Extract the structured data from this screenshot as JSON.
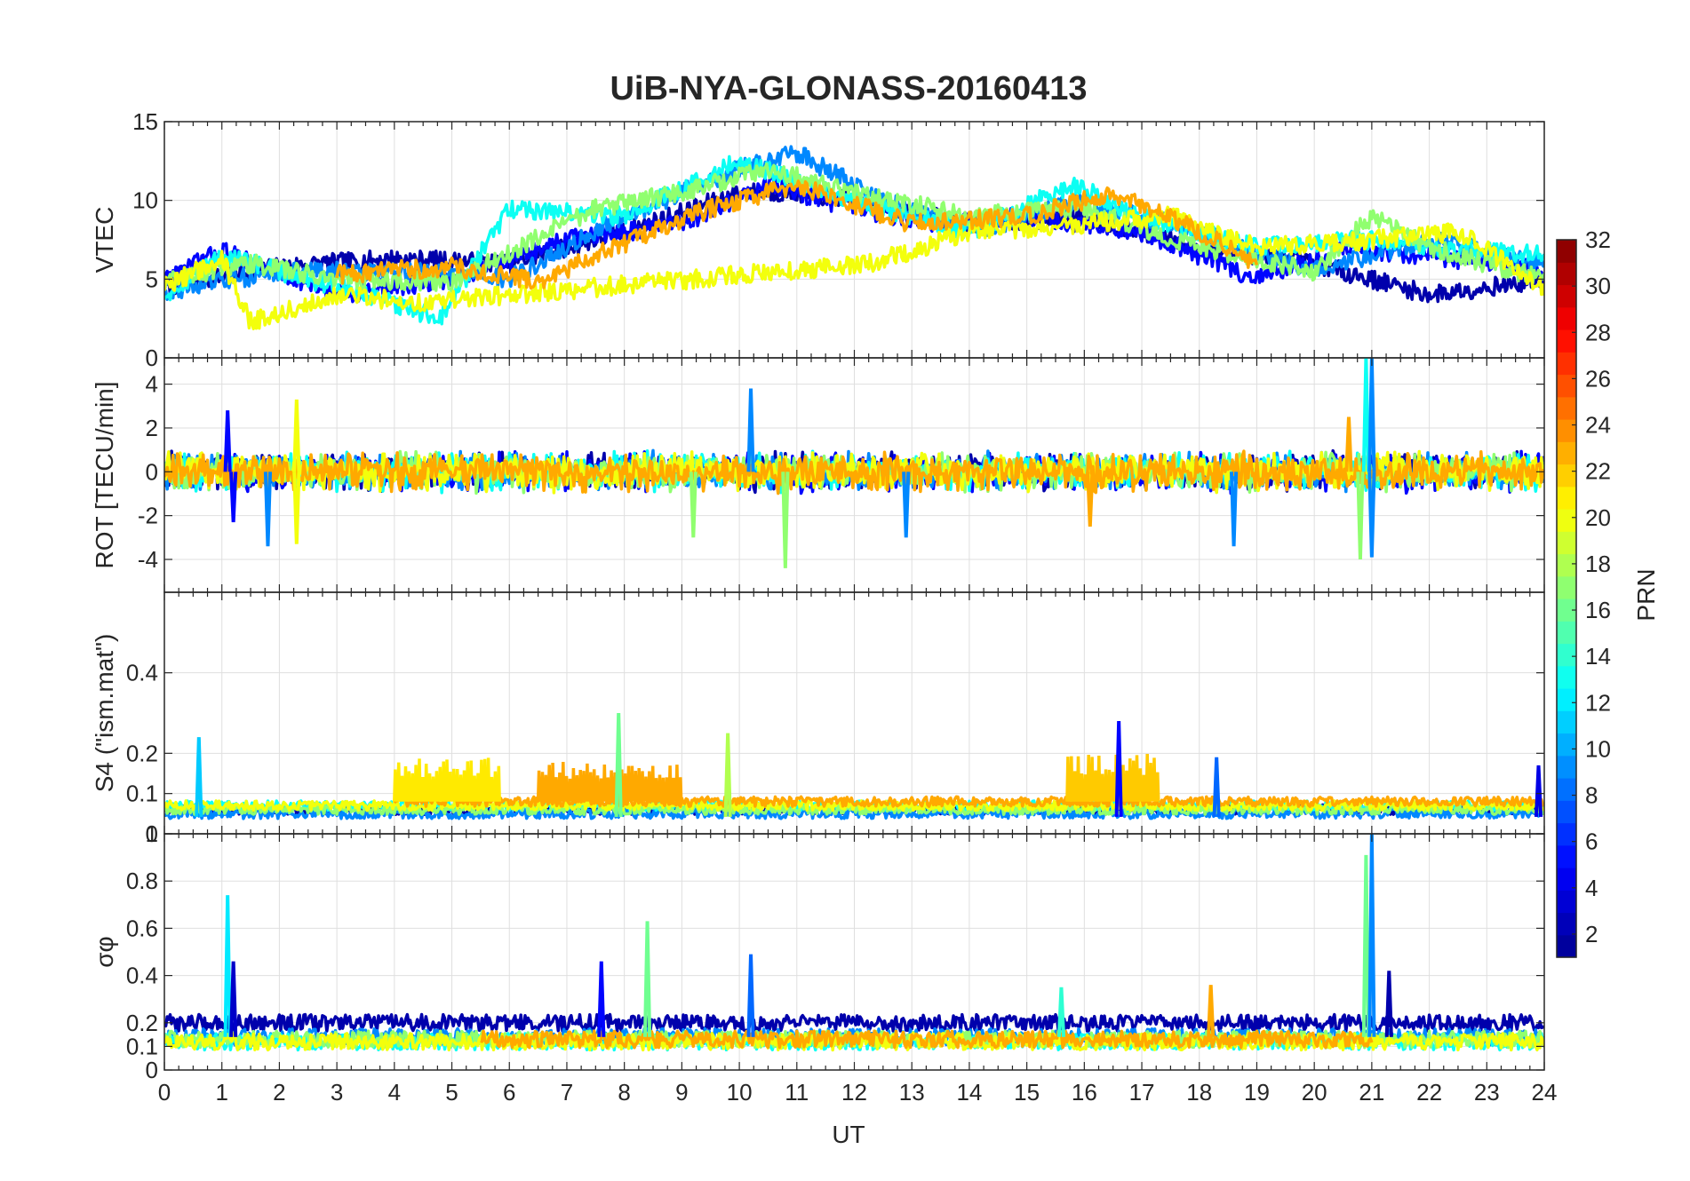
{
  "figure": {
    "title": "UiB-NYA-GLONASS-20160413",
    "x_label": "UT",
    "colorbar_label": "PRN"
  },
  "colors": {
    "axis": "#262626",
    "grid": "#dfdfdf",
    "jet_anchors": [
      "#00008f",
      "#0000ff",
      "#00ffff",
      "#ffff00",
      "#ff0000",
      "#800000"
    ]
  },
  "chart_data": [
    {
      "type": "line",
      "panel": "VTEC",
      "ylabel": "VTEC",
      "x_range": [
        0,
        24
      ],
      "ylim": [
        0,
        15
      ],
      "yticks": [
        0,
        5,
        10,
        15
      ],
      "grid": true,
      "series_baseline": [
        {
          "prn": 2,
          "x": [
            0,
            2,
            4,
            6,
            8,
            10,
            11,
            12,
            14,
            16,
            18,
            20,
            21,
            22,
            23,
            24
          ],
          "y": [
            4.5,
            5.8,
            6.3,
            6,
            8,
            10.5,
            10.5,
            10,
            8.5,
            9,
            7,
            6,
            5,
            4,
            4.5,
            5
          ]
        },
        {
          "prn": 5,
          "x": [
            0,
            1,
            3,
            5,
            7,
            9,
            10.5,
            12,
            13.5,
            15,
            17,
            19,
            20.5,
            22,
            24
          ],
          "y": [
            5,
            6.8,
            4,
            5,
            7.5,
            8.5,
            11,
            9.5,
            8.5,
            9,
            8,
            5,
            7,
            6.5,
            5.5
          ]
        },
        {
          "prn": 9,
          "x": [
            0,
            2,
            4,
            6,
            8,
            10,
            11,
            12.5,
            14,
            16,
            18,
            20,
            22,
            24
          ],
          "y": [
            4.2,
            5.5,
            5.5,
            5,
            9,
            12,
            13,
            10,
            8,
            10,
            8,
            5.5,
            7.5,
            6
          ]
        },
        {
          "prn": 13,
          "x": [
            0,
            1,
            3,
            4.8,
            6,
            8,
            10,
            12,
            14,
            15.8,
            17,
            19,
            20.8,
            22,
            24
          ],
          "y": [
            4,
            6.5,
            4.5,
            2.5,
            9.5,
            9,
            12.5,
            10,
            8,
            11,
            9,
            7,
            7.5,
            7,
            6.5
          ]
        },
        {
          "prn": 17,
          "x": [
            0,
            1.5,
            3,
            5,
            7.5,
            9,
            10.5,
            12,
            14,
            16,
            18,
            20,
            21,
            22,
            24
          ],
          "y": [
            5,
            6,
            5,
            4.8,
            9.5,
            10.5,
            12,
            10.5,
            9,
            9.5,
            7,
            5.5,
            9,
            7,
            5
          ]
        },
        {
          "prn": 20,
          "x": [
            0,
            1,
            1.5,
            3,
            4.5,
            12.3,
            14,
            16,
            17.5,
            19,
            21,
            22.5,
            24
          ],
          "y": [
            4.5,
            6.3,
            2.3,
            4,
            3.5,
            6,
            8,
            8.5,
            9,
            7,
            7.5,
            8,
            4.5
          ]
        },
        {
          "prn": 23,
          "x": [
            3,
            5,
            6.5,
            7.5,
            9.5,
            11,
            13,
            15,
            16.5,
            18,
            19
          ],
          "y": [
            5.3,
            5.8,
            4.8,
            6.5,
            9.5,
            11,
            8.5,
            9,
            10.5,
            8,
            6
          ]
        }
      ]
    },
    {
      "type": "line",
      "panel": "ROT",
      "ylabel": "ROT [TECU/min]",
      "x_range": [
        0,
        24
      ],
      "ylim": [
        -5.5,
        5.2
      ],
      "yticks": [
        -4,
        -2,
        0,
        2,
        4
      ],
      "grid": true,
      "series_baseline": [
        {
          "prn": 2,
          "x": [
            0,
            24
          ],
          "y": [
            0,
            0
          ]
        },
        {
          "prn": 5,
          "x": [
            0,
            24
          ],
          "y": [
            0,
            0
          ]
        },
        {
          "prn": 9,
          "x": [
            0,
            24
          ],
          "y": [
            0,
            0
          ]
        },
        {
          "prn": 13,
          "x": [
            0,
            24
          ],
          "y": [
            0,
            0
          ]
        },
        {
          "prn": 17,
          "x": [
            0,
            24
          ],
          "y": [
            0,
            0
          ]
        },
        {
          "prn": 20,
          "x": [
            0,
            24
          ],
          "y": [
            0,
            0
          ]
        },
        {
          "prn": 23,
          "x": [
            0,
            24
          ],
          "y": [
            0,
            0
          ]
        }
      ],
      "spikes": [
        {
          "x": 1.1,
          "y": 2.8,
          "prn": 5
        },
        {
          "x": 1.2,
          "y": -2.3,
          "prn": 5
        },
        {
          "x": 1.8,
          "y": -3.4,
          "prn": 9
        },
        {
          "x": 2.3,
          "y": 3.3,
          "prn": 20
        },
        {
          "x": 2.3,
          "y": -3.3,
          "prn": 20
        },
        {
          "x": 9.2,
          "y": -3,
          "prn": 17
        },
        {
          "x": 10.2,
          "y": 3.8,
          "prn": 9
        },
        {
          "x": 10.8,
          "y": -4.4,
          "prn": 17
        },
        {
          "x": 12.9,
          "y": -3,
          "prn": 9
        },
        {
          "x": 16.1,
          "y": -2.5,
          "prn": 23
        },
        {
          "x": 18.6,
          "y": -3.4,
          "prn": 9
        },
        {
          "x": 20.9,
          "y": 5.2,
          "prn": 13
        },
        {
          "x": 21,
          "y": 5.2,
          "prn": 9
        },
        {
          "x": 21,
          "y": -3.9,
          "prn": 9
        },
        {
          "x": 20.8,
          "y": -4,
          "prn": 17
        },
        {
          "x": 20.6,
          "y": 2.5,
          "prn": 23
        }
      ]
    },
    {
      "type": "line",
      "panel": "S4",
      "ylabel": "S4 (\"ism.mat\")",
      "x_range": [
        0,
        24
      ],
      "ylim": [
        0,
        0.6
      ],
      "yticks": [
        0,
        0.1,
        0.2,
        0.4
      ],
      "grid": true,
      "series_baseline": [
        {
          "prn": 2,
          "x": [
            0,
            24
          ],
          "y": [
            0.06,
            0.06
          ]
        },
        {
          "prn": 9,
          "x": [
            0,
            24
          ],
          "y": [
            0.05,
            0.05
          ]
        },
        {
          "prn": 13,
          "x": [
            0,
            24
          ],
          "y": [
            0.07,
            0.07
          ]
        },
        {
          "prn": 17,
          "x": [
            0,
            24
          ],
          "y": [
            0.06,
            0.06
          ]
        },
        {
          "prn": 20,
          "x": [
            0,
            24
          ],
          "y": [
            0.07,
            0.07
          ]
        },
        {
          "prn": 23,
          "x": [
            4,
            24
          ],
          "y": [
            0.08,
            0.08
          ]
        }
      ],
      "spikes": [
        {
          "x": 0.6,
          "y": 0.24,
          "prn": 11
        },
        {
          "x": 7.9,
          "y": 0.3,
          "prn": 16
        },
        {
          "x": 9.8,
          "y": 0.25,
          "prn": 18
        },
        {
          "x": 16.6,
          "y": 0.28,
          "prn": 5
        },
        {
          "x": 18.3,
          "y": 0.19,
          "prn": 8
        },
        {
          "x": 23.9,
          "y": 0.17,
          "prn": 4
        }
      ],
      "bursts": [
        {
          "x_start": 4,
          "x_end": 5.8,
          "y": 0.19,
          "prn": 21
        },
        {
          "x_start": 6.5,
          "x_end": 9,
          "y": 0.18,
          "prn": 23
        },
        {
          "x_start": 15.7,
          "x_end": 17.3,
          "y": 0.2,
          "prn": 22
        }
      ]
    },
    {
      "type": "line",
      "panel": "sigma_phi",
      "ylabel": "σφ",
      "x_range": [
        0,
        24
      ],
      "ylim": [
        0,
        1
      ],
      "yticks": [
        0,
        0.1,
        0.2,
        0.4,
        0.6,
        0.8,
        1
      ],
      "grid": true,
      "series_baseline": [
        {
          "prn": 2,
          "x": [
            0,
            24
          ],
          "y": [
            0.2,
            0.2
          ]
        },
        {
          "prn": 9,
          "x": [
            0,
            24
          ],
          "y": [
            0.14,
            0.14
          ]
        },
        {
          "prn": 13,
          "x": [
            0,
            24
          ],
          "y": [
            0.12,
            0.12
          ]
        },
        {
          "prn": 17,
          "x": [
            0,
            24
          ],
          "y": [
            0.13,
            0.13
          ]
        },
        {
          "prn": 20,
          "x": [
            0,
            24
          ],
          "y": [
            0.12,
            0.12
          ]
        },
        {
          "prn": 23,
          "x": [
            5.5,
            21
          ],
          "y": [
            0.13,
            0.13
          ]
        }
      ],
      "spikes": [
        {
          "x": 1.1,
          "y": 0.74,
          "prn": 12
        },
        {
          "x": 1.2,
          "y": 0.46,
          "prn": 3
        },
        {
          "x": 7.6,
          "y": 0.46,
          "prn": 5
        },
        {
          "x": 8.4,
          "y": 0.63,
          "prn": 16
        },
        {
          "x": 10.2,
          "y": 0.49,
          "prn": 8
        },
        {
          "x": 15.6,
          "y": 0.35,
          "prn": 14
        },
        {
          "x": 18.2,
          "y": 0.36,
          "prn": 23
        },
        {
          "x": 20.9,
          "y": 0.91,
          "prn": 16
        },
        {
          "x": 21,
          "y": 1,
          "prn": 9
        },
        {
          "x": 21.3,
          "y": 0.42,
          "prn": 2
        }
      ]
    }
  ],
  "x_axis": {
    "label": "UT",
    "range": [
      0,
      24
    ],
    "ticks": [
      0,
      1,
      2,
      3,
      4,
      5,
      6,
      7,
      8,
      9,
      10,
      11,
      12,
      13,
      14,
      15,
      16,
      17,
      18,
      19,
      20,
      21,
      22,
      23,
      24
    ]
  },
  "colorbar": {
    "label": "PRN",
    "range": [
      1,
      32
    ],
    "ticks": [
      2,
      4,
      6,
      8,
      10,
      12,
      14,
      16,
      18,
      20,
      22,
      24,
      26,
      28,
      30,
      32
    ],
    "colormap": "jet"
  }
}
